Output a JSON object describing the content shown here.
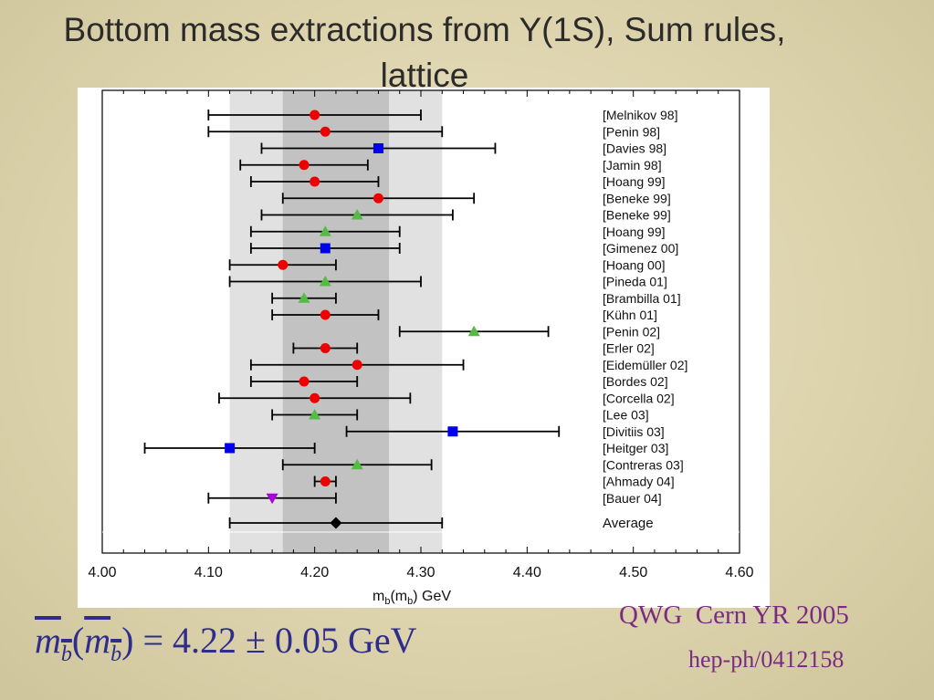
{
  "slide": {
    "title": "Bottom mass extractions from Y(1S), Sum rules, lattice",
    "formula": {
      "m": "m",
      "sub": "b",
      "open": "(",
      "close": ")",
      "equals": "=",
      "value": "4.22 ± 0.05",
      "unit": "GeV"
    },
    "reference": "QWG  Cern YR 2005",
    "arxiv": "hep-ph/0412158"
  },
  "chart_data": {
    "type": "scatter",
    "xlabel": "m_b(m_b) GeV",
    "xlabel_parts": {
      "m": "m",
      "b1": "b",
      "mid": "(m",
      "b2": "b",
      "tail": ") GeV"
    },
    "xlim": [
      4.0,
      4.6
    ],
    "xticks": [
      "4.00",
      "4.10",
      "4.20",
      "4.30",
      "4.40",
      "4.50",
      "4.60"
    ],
    "bands": [
      {
        "range": [
          4.12,
          4.32
        ],
        "color": "#e1e1e1"
      },
      {
        "range": [
          4.17,
          4.27
        ],
        "color": "#c2c2c2"
      }
    ],
    "markers": {
      "circle": "#ee0000",
      "square": "#0000ee",
      "triangle": "#55bb44",
      "triangle-down": "#aa00dd",
      "diamond": "#000000"
    },
    "points": [
      {
        "label": "[Melnikov 98]",
        "value": 4.2,
        "low": 4.1,
        "high": 4.3,
        "marker": "circle"
      },
      {
        "label": "[Penin 98]",
        "value": 4.21,
        "low": 4.1,
        "high": 4.32,
        "marker": "circle"
      },
      {
        "label": "[Davies 98]",
        "value": 4.26,
        "low": 4.15,
        "high": 4.37,
        "marker": "square"
      },
      {
        "label": "[Jamin 98]",
        "value": 4.19,
        "low": 4.13,
        "high": 4.25,
        "marker": "circle"
      },
      {
        "label": "[Hoang 99]",
        "value": 4.2,
        "low": 4.14,
        "high": 4.26,
        "marker": "circle"
      },
      {
        "label": "[Beneke 99]",
        "value": 4.26,
        "low": 4.17,
        "high": 4.35,
        "marker": "circle"
      },
      {
        "label": "[Beneke 99]",
        "value": 4.24,
        "low": 4.15,
        "high": 4.33,
        "marker": "triangle"
      },
      {
        "label": "[Hoang 99]",
        "value": 4.21,
        "low": 4.14,
        "high": 4.28,
        "marker": "triangle"
      },
      {
        "label": "[Gimenez 00]",
        "value": 4.21,
        "low": 4.14,
        "high": 4.28,
        "marker": "square"
      },
      {
        "label": "[Hoang 00]",
        "value": 4.17,
        "low": 4.12,
        "high": 4.22,
        "marker": "circle"
      },
      {
        "label": "[Pineda 01]",
        "value": 4.21,
        "low": 4.12,
        "high": 4.3,
        "marker": "triangle"
      },
      {
        "label": "[Brambilla 01]",
        "value": 4.19,
        "low": 4.16,
        "high": 4.22,
        "marker": "triangle"
      },
      {
        "label": "[Kühn 01]",
        "value": 4.21,
        "low": 4.16,
        "high": 4.26,
        "marker": "circle"
      },
      {
        "label": "[Penin 02]",
        "value": 4.35,
        "low": 4.28,
        "high": 4.42,
        "marker": "triangle"
      },
      {
        "label": "[Erler 02]",
        "value": 4.21,
        "low": 4.18,
        "high": 4.24,
        "marker": "circle"
      },
      {
        "label": "[Eidemüller 02]",
        "value": 4.24,
        "low": 4.14,
        "high": 4.34,
        "marker": "circle"
      },
      {
        "label": "[Bordes 02]",
        "value": 4.19,
        "low": 4.14,
        "high": 4.24,
        "marker": "circle"
      },
      {
        "label": "[Corcella 02]",
        "value": 4.2,
        "low": 4.11,
        "high": 4.29,
        "marker": "circle"
      },
      {
        "label": "[Lee 03]",
        "value": 4.2,
        "low": 4.16,
        "high": 4.24,
        "marker": "triangle"
      },
      {
        "label": "[Divitiis 03]",
        "value": 4.33,
        "low": 4.23,
        "high": 4.43,
        "marker": "square"
      },
      {
        "label": "[Heitger 03]",
        "value": 4.12,
        "low": 4.04,
        "high": 4.2,
        "marker": "square"
      },
      {
        "label": "[Contreras 03]",
        "value": 4.24,
        "low": 4.17,
        "high": 4.31,
        "marker": "triangle"
      },
      {
        "label": "[Ahmady 04]",
        "value": 4.21,
        "low": 4.2,
        "high": 4.22,
        "marker": "circle"
      },
      {
        "label": "[Bauer 04]",
        "value": 4.16,
        "low": 4.1,
        "high": 4.22,
        "marker": "triangle-down"
      }
    ],
    "average": {
      "label": "Average",
      "value": 4.22,
      "low": 4.12,
      "high": 4.32,
      "marker": "diamond"
    }
  }
}
